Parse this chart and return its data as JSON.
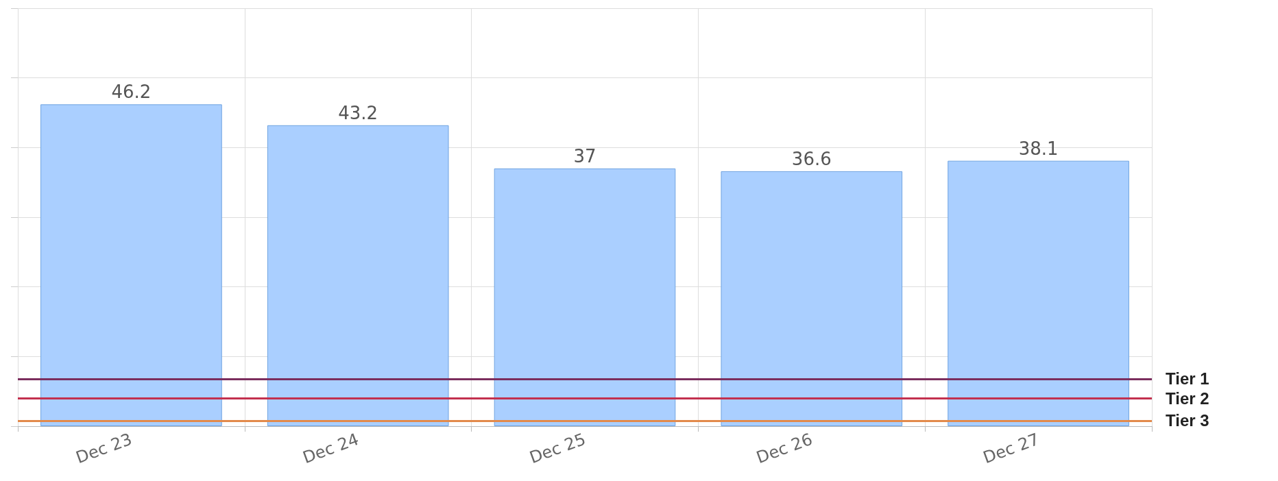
{
  "chart_data": {
    "type": "bar",
    "categories": [
      "Dec 23",
      "Dec 24",
      "Dec 25",
      "Dec 26",
      "Dec 27"
    ],
    "series": [
      {
        "color": "#aacfff",
        "values": [
          46.2,
          43.2,
          37,
          36.6,
          38.1
        ]
      }
    ],
    "ylim": [
      0,
      60
    ],
    "yticks": [
      {
        "value": 0,
        "label": null
      },
      {
        "value": 10,
        "label": null
      },
      {
        "value": 20,
        "label": null
      },
      {
        "value": 30,
        "label": null
      },
      {
        "value": 40,
        "label": null
      },
      {
        "value": 50,
        "label": null
      },
      {
        "value": 60,
        "label": null
      }
    ],
    "tick_labels": "x",
    "grid": true,
    "data_labels": true,
    "ref_lines": [
      {
        "axis": "y",
        "value": 6.8,
        "label": "Tier 1",
        "color": "#7b2d5e"
      },
      {
        "axis": "y",
        "value": 4.0,
        "label": "Tier 2",
        "color": "#c3304e"
      },
      {
        "axis": "y",
        "value": 0.8,
        "label": "Tier 3",
        "color": "#e38a4c"
      }
    ]
  }
}
